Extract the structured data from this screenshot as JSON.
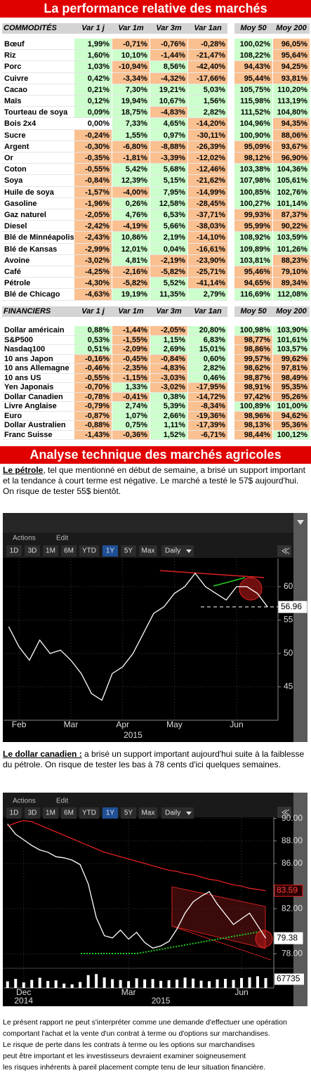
{
  "header": {
    "title": "La performance relative des marchés"
  },
  "commodities": {
    "header": [
      "COMMODITÉS",
      "Var 1 j",
      "Var 1m",
      "Var 3m",
      "Var 1an",
      "Moy 50",
      "Moy 200"
    ],
    "rows": [
      [
        "Bœuf",
        "1,99%",
        "-0,71%",
        "-0,76%",
        "-0,28%",
        "100,02%",
        "96,05%"
      ],
      [
        "Riz",
        "1,60%",
        "10,10%",
        "-1,44%",
        "-21,47%",
        "108,22%",
        "95,64%"
      ],
      [
        "Porc",
        "1,03%",
        "-10,94%",
        "8,56%",
        "-42,40%",
        "94,43%",
        "94,25%"
      ],
      [
        "Cuivre",
        "0,42%",
        "-3,34%",
        "-4,32%",
        "-17,66%",
        "95,44%",
        "93,81%"
      ],
      [
        "Cacao",
        "0,21%",
        "7,30%",
        "19,21%",
        "5,03%",
        "105,75%",
        "110,20%"
      ],
      [
        "Maïs",
        "0,12%",
        "19,94%",
        "10,67%",
        "1,56%",
        "115,98%",
        "113,19%"
      ],
      [
        "Tourteau de soya",
        "0,09%",
        "18,75%",
        "-4,83%",
        "2,82%",
        "111,52%",
        "104,80%"
      ],
      [
        "Bois 2x4",
        "0,00%",
        "7,33%",
        "4,65%",
        "-14,20%",
        "104,96%",
        "94,35%"
      ],
      [
        "Sucre",
        "-0,24%",
        "1,55%",
        "0,97%",
        "-30,11%",
        "100,90%",
        "88,06%"
      ],
      [
        "Argent",
        "-0,30%",
        "-6,80%",
        "-8,88%",
        "-26,39%",
        "95,09%",
        "93,67%"
      ],
      [
        "Or",
        "-0,35%",
        "-1,81%",
        "-3,39%",
        "-12,02%",
        "98,12%",
        "96,90%"
      ],
      [
        "Coton",
        "-0,55%",
        "5,42%",
        "5,68%",
        "-12,46%",
        "103,38%",
        "104,36%"
      ],
      [
        "Soya",
        "-0,84%",
        "12,39%",
        "5,15%",
        "-21,62%",
        "107,98%",
        "105,61%"
      ],
      [
        "Huile de soya",
        "-1,57%",
        "-4,00%",
        "7,95%",
        "-14,99%",
        "100,85%",
        "102,76%"
      ],
      [
        "Gasoline",
        "-1,96%",
        "0,26%",
        "12,58%",
        "-28,45%",
        "100,27%",
        "101,14%"
      ],
      [
        "Gaz naturel",
        "-2,05%",
        "4,76%",
        "6,53%",
        "-37,71%",
        "99,93%",
        "87,37%"
      ],
      [
        "Diesel",
        "-2,42%",
        "-4,19%",
        "5,66%",
        "-38,03%",
        "95,99%",
        "90,22%"
      ],
      [
        "Blé de Minnéapolis",
        "-2,43%",
        "10,86%",
        "2,19%",
        "-14,10%",
        "108,92%",
        "103,59%"
      ],
      [
        "Blé de Kansas",
        "-2,99%",
        "12,01%",
        "0,04%",
        "-16,61%",
        "109,89%",
        "101,26%"
      ],
      [
        "Avoine",
        "-3,02%",
        "4,81%",
        "-2,19%",
        "-23,90%",
        "103,81%",
        "88,23%"
      ],
      [
        "Café",
        "-4,25%",
        "-2,16%",
        "-5,82%",
        "-25,71%",
        "95,46%",
        "79,10%"
      ],
      [
        "Pétrole",
        "-4,30%",
        "-5,82%",
        "5,52%",
        "-41,14%",
        "94,65%",
        "89,34%"
      ],
      [
        "Blé de Chicago",
        "-4,63%",
        "19,19%",
        "11,35%",
        "2,79%",
        "116,69%",
        "112,08%"
      ]
    ]
  },
  "financiers": {
    "header": [
      "FINANCIERS",
      "Var 1 j",
      "Var 1m",
      "Var 3m",
      "Var 1an",
      "Moy 50",
      "Moy 200"
    ],
    "rows": [
      [
        "Dollar américain",
        "0,88%",
        "-1,44%",
        "-2,05%",
        "20,80%",
        "100,98%",
        "103,90%"
      ],
      [
        "S&P500",
        "0,53%",
        "-1,55%",
        "1,15%",
        "6,83%",
        "98,77%",
        "101,61%"
      ],
      [
        "Nasdaq100",
        "0,51%",
        "-2,09%",
        "2,69%",
        "15,01%",
        "98,86%",
        "103,57%"
      ],
      [
        "10 ans Japon",
        "-0,16%",
        "-0,45%",
        "-0,84%",
        "0,60%",
        "99,57%",
        "99,62%"
      ],
      [
        "10 ans Allemagne",
        "-0,46%",
        "-2,35%",
        "-4,83%",
        "2,82%",
        "98,62%",
        "97,81%"
      ],
      [
        "10 ans US",
        "-0,55%",
        "-1,15%",
        "-3,03%",
        "0,46%",
        "98,87%",
        "98,49%"
      ],
      [
        "Yen Japonais",
        "-0,70%",
        "1,33%",
        "-3,02%",
        "-17,95%",
        "98,91%",
        "95,35%"
      ],
      [
        "Dollar Canadien",
        "-0,78%",
        "-0,41%",
        "0,38%",
        "-14,72%",
        "97,42%",
        "95,26%"
      ],
      [
        "Livre Anglaise",
        "-0,79%",
        "2,74%",
        "5,39%",
        "-8,34%",
        "100,89%",
        "101,00%"
      ],
      [
        "Euro",
        "-0,87%",
        "1,07%",
        "2,66%",
        "-19,36%",
        "98,96%",
        "94,62%"
      ],
      [
        "Dollar Australien",
        "-0,88%",
        "0,75%",
        "1,11%",
        "-17,39%",
        "98,13%",
        "95,36%"
      ],
      [
        "Franc Suisse",
        "-1,43%",
        "-0,36%",
        "1,52%",
        "-6,71%",
        "98,44%",
        "100,12%"
      ]
    ]
  },
  "section_title": "Analyse technique des marchés agricoles",
  "paragraphs": [
    {
      "lead": "Le pétrole",
      "text": ", tel que mentionné en début de semaine, a brisé un support important et la tendance à court terme est négative. Le marché a testé le 57$ aujourd'hui. On risque de tester 55$ bientôt."
    },
    {
      "lead": "Le dollar canadien :",
      "text": " a brisé un support important aujourd'hui suite à la faiblesse du pétrole. On risque de tester les bas à 78 cents d'ici quelques semaines."
    }
  ],
  "chart_data": [
    {
      "type": "line",
      "toolbar": [
        "Actions",
        "Edit"
      ],
      "buttons": [
        "1D",
        "3D",
        "1M",
        "6M",
        "YTD",
        "1Y",
        "5Y",
        "Max",
        "Daily"
      ],
      "values": [
        54,
        51,
        49,
        52,
        50,
        50.5,
        49,
        47,
        44,
        43,
        47,
        48,
        50,
        53,
        56,
        57,
        59,
        60,
        62,
        60,
        59,
        58,
        60,
        60,
        59,
        56.96
      ],
      "color": "#ffffff",
      "xlim": [
        -0.5,
        26
      ],
      "ylim": [
        40,
        64.2
      ],
      "yticks": [
        45,
        50,
        55,
        60
      ],
      "xticks": [
        {
          "value": 1,
          "label": "Feb"
        },
        {
          "value": 6,
          "label": "Mar"
        },
        {
          "value": 11,
          "label": "Apr"
        },
        {
          "value": 16,
          "label": "May"
        },
        {
          "value": 22,
          "label": "Jun"
        }
      ],
      "year_ticks": [
        {
          "value": 12,
          "label": "2015"
        }
      ],
      "grid": true
    },
    {
      "type": "line",
      "toolbar": [
        "Actions",
        "Edit"
      ],
      "buttons": [
        "1D",
        "3D",
        "1M",
        "6M",
        "YTD",
        "1Y",
        "5Y",
        "Max",
        "Daily"
      ],
      "series": [
        {
          "color": "#ffffff",
          "values": [
            89.5,
            88.6,
            88.1,
            87.6,
            87.2,
            87.0,
            86.6,
            86.5,
            86.3,
            85.9,
            84.2,
            81.2,
            79.6,
            79.4,
            80.1,
            79.3,
            79.9,
            79.0,
            78.5,
            78.7,
            79.1,
            80.2,
            81.6,
            82.6,
            83.1,
            83.5,
            82.4,
            81.5,
            80.6,
            81.1,
            81.6,
            80.5,
            79.38
          ]
        },
        {
          "color": "#e02020",
          "values": [
            89.3,
            89.6,
            89.8,
            89.7,
            89.4,
            89.1,
            88.8,
            88.5,
            88.2,
            87.9,
            87.6,
            87.3,
            87.0,
            86.8,
            86.6,
            86.4,
            86.2,
            86.0,
            85.8,
            85.6,
            85.4,
            85.3,
            85.1,
            85.0,
            84.8,
            84.6,
            84.5,
            84.3,
            84.1,
            84.0,
            83.8,
            83.7,
            83.59
          ]
        }
      ],
      "volume": {
        "color": "#ffffff",
        "ylim": [
          0,
          120000
        ],
        "values": [
          45000,
          62000,
          38000,
          55000,
          70000,
          48000,
          52000,
          30000,
          25000,
          41000,
          88000,
          95000,
          72000,
          60000,
          54000,
          47000,
          66000,
          58000,
          61000,
          49000,
          53000,
          57000,
          71000,
          64000,
          50000,
          46000,
          59000,
          62000,
          55000,
          68000,
          73000,
          80000,
          67735
        ]
      },
      "xlim": [
        -0.5,
        33
      ],
      "ylim": [
        76.9,
        90.1
      ],
      "yticks": [
        {
          "value": 78,
          "label": "78.00"
        },
        {
          "value": 82,
          "label": "82.00"
        },
        {
          "value": 86,
          "label": "86.00"
        },
        {
          "value": 88,
          "label": "88.00"
        },
        {
          "value": 90,
          "label": "90.00"
        }
      ],
      "xticks": [
        {
          "value": 2,
          "label": "Dec"
        },
        {
          "value": 15,
          "label": "Mar"
        },
        {
          "value": 29,
          "label": "Jun"
        }
      ],
      "year_ticks": [
        {
          "value": 2,
          "label": "2014"
        },
        {
          "value": 19,
          "label": "2015"
        }
      ],
      "grid": true
    }
  ],
  "disclaimer": [
    "Le présent rapport ne peut s'interpréter comme une demande d'effectuer une opération",
    "comportant l'achat et la vente d'un contrat à terme ou d'options sur marchandises.",
    "Le risque de perte dans les contrats à terme ou les options sur marchandises",
    "peut être important et les investisseurs devraient examiner soigneusement",
    "les risques inhérents à pareil placement compte tenu de leur situation financière."
  ]
}
